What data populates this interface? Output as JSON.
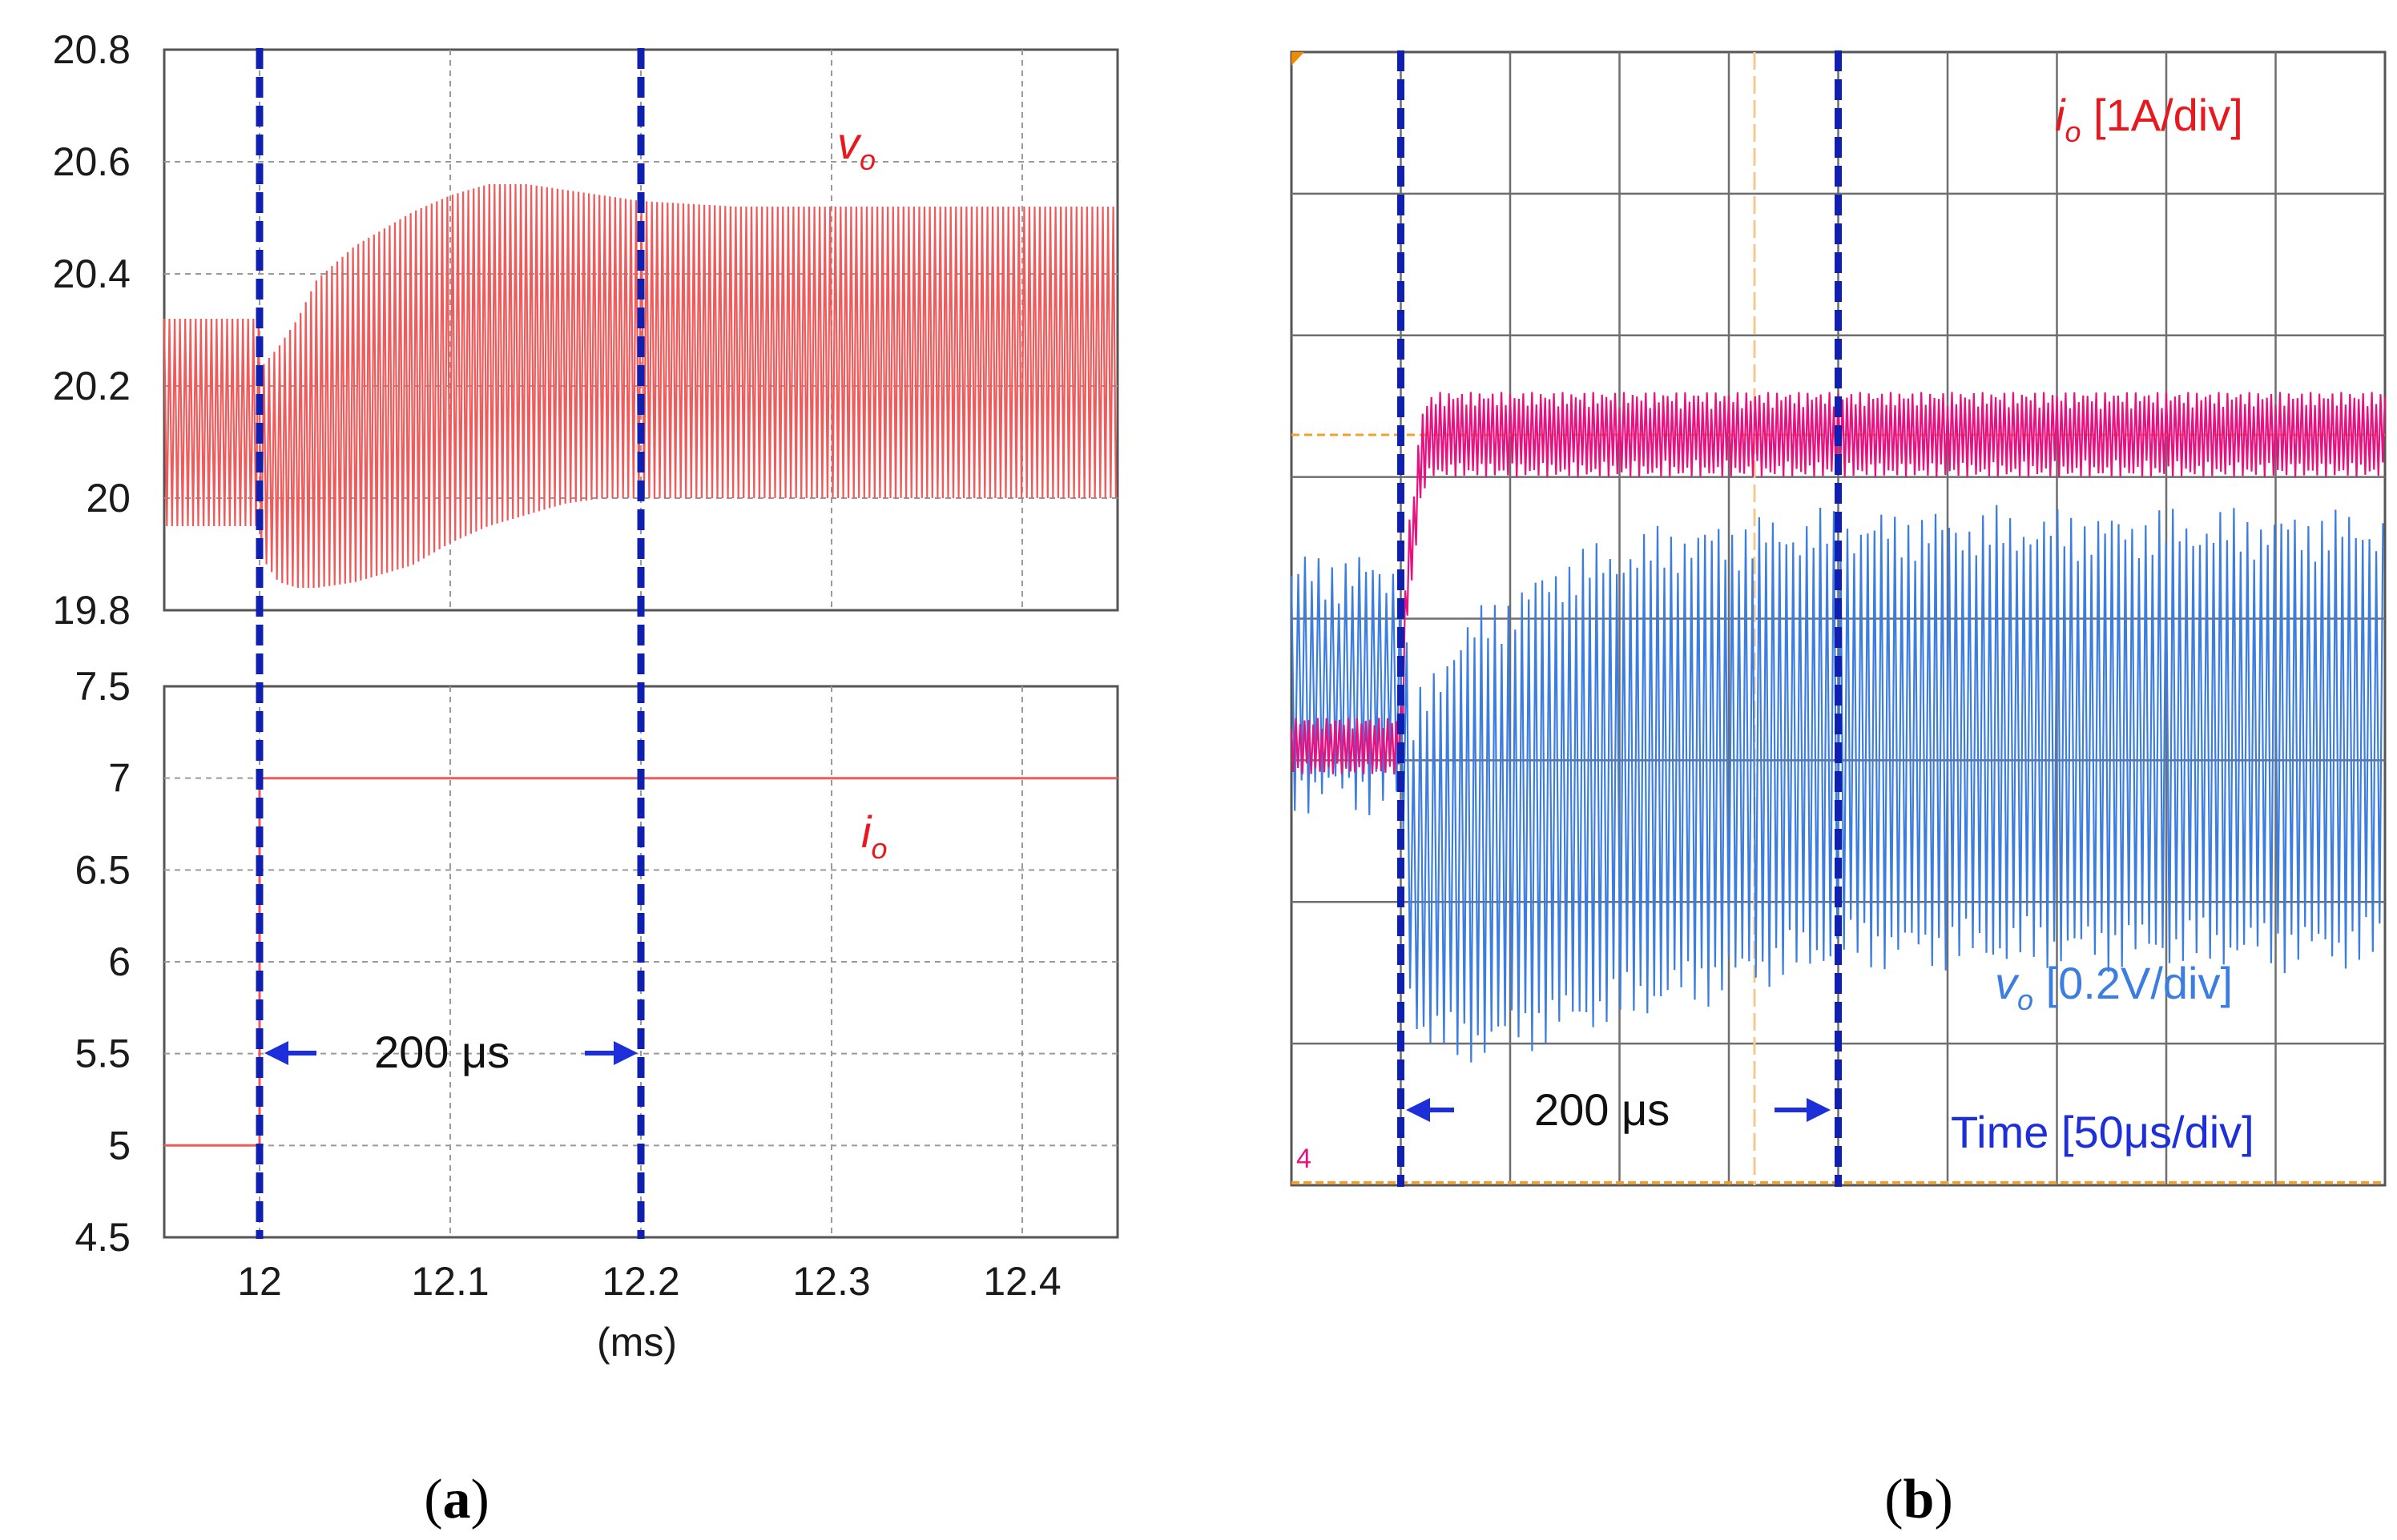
{
  "chart_data": [
    {
      "panel": "(a)",
      "type": "line",
      "source": "simulation",
      "x_unit": "(ms)",
      "xlim": [
        11.95,
        12.45
      ],
      "xticks": [
        "12",
        "12.1",
        "12.2",
        "12.3",
        "12.4"
      ],
      "subplots": [
        {
          "name": "vo",
          "label": "v",
          "label_sub": "o",
          "ylim": [
            19.8,
            20.8
          ],
          "yticks": [
            "20.8",
            "20.6",
            "20.4",
            "20.2",
            "20",
            "19.8"
          ],
          "envelope": {
            "x": [
              11.95,
              12.0,
              12.0,
              12.01,
              12.02,
              12.03,
              12.05,
              12.08,
              12.1,
              12.12,
              12.14,
              12.16,
              12.18,
              12.2,
              12.25,
              12.3,
              12.35,
              12.4,
              12.45
            ],
            "upper": [
              20.32,
              20.32,
              20.23,
              20.27,
              20.32,
              20.39,
              20.45,
              20.51,
              20.54,
              20.56,
              20.56,
              20.55,
              20.54,
              20.53,
              20.52,
              20.52,
              20.52,
              20.52,
              20.52
            ],
            "lower": [
              19.95,
              19.95,
              19.9,
              19.85,
              19.84,
              19.84,
              19.85,
              19.88,
              19.92,
              19.95,
              19.97,
              19.99,
              20.0,
              20.0,
              20.0,
              20.0,
              20.0,
              20.0,
              20.0
            ]
          }
        },
        {
          "name": "io",
          "label": "i",
          "label_sub": "o",
          "ylim": [
            4.5,
            7.5
          ],
          "yticks": [
            "7.5",
            "7",
            "6.5",
            "6",
            "5.5",
            "5",
            "4.5"
          ],
          "x": [
            11.95,
            12.0,
            12.0,
            12.45
          ],
          "y": [
            5,
            5,
            7,
            7
          ]
        }
      ],
      "markers": [
        12.0,
        12.2
      ],
      "annotation": "200 μs"
    },
    {
      "panel": "(b)",
      "type": "line",
      "source": "oscilloscope",
      "grid_divisions": [
        10,
        8
      ],
      "time_scale": "Time [50μs/div]",
      "channels": [
        {
          "name": "io",
          "label": "i",
          "label_sub": "o",
          "scale": " [1A/div]",
          "color": "#e8117f",
          "envelope": {
            "x_div": [
              0,
              1.0,
              1.05,
              1.2,
              1.3,
              10
            ],
            "mid": [
              3.1,
              3.1,
              4.2,
              5.2,
              5.3,
              5.3
            ]
          }
        },
        {
          "name": "vo",
          "label": "v",
          "label_sub": "o",
          "scale": " [0.2V/div]",
          "color": "#3b7de0",
          "envelope": {
            "x_div": [
              0,
              1.0,
              1.1,
              1.5,
              2.5,
              3.5,
              5.0,
              10.0
            ],
            "upper": [
              4.3,
              4.3,
              3.2,
              3.8,
              4.3,
              4.5,
              4.6,
              4.6
            ],
            "lower": [
              2.8,
              2.8,
              1.2,
              1.0,
              1.2,
              1.4,
              1.7,
              1.7
            ]
          }
        }
      ],
      "markers_div": [
        1.0,
        5.0
      ],
      "annotation": "200 μs",
      "channel_marker": "4"
    }
  ],
  "captions": [
    "(a)",
    "(b)"
  ]
}
